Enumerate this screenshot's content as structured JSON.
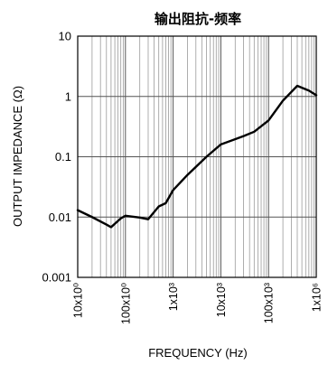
{
  "chart_data": {
    "type": "line",
    "title": "输出阻抗-频率",
    "xlabel": "FREQUENCY (Hz)",
    "ylabel": "OUTPUT IMPEDANCE (Ω)",
    "x_scale": "log",
    "y_scale": "log",
    "xlim": [
      10,
      1000000
    ],
    "ylim": [
      0.001,
      10
    ],
    "grid": true,
    "x_ticks": [
      {
        "value": 10,
        "label": "10x10⁰"
      },
      {
        "value": 100,
        "label": "100x10⁰"
      },
      {
        "value": 1000,
        "label": "1x10³"
      },
      {
        "value": 10000,
        "label": "10x10³"
      },
      {
        "value": 100000,
        "label": "100x10³"
      },
      {
        "value": 1000000,
        "label": "1x10⁶"
      }
    ],
    "y_ticks": [
      {
        "value": 0.001,
        "label": "0.001"
      },
      {
        "value": 0.01,
        "label": "0.01"
      },
      {
        "value": 0.1,
        "label": "0.1"
      },
      {
        "value": 1,
        "label": "1"
      },
      {
        "value": 10,
        "label": "10"
      }
    ],
    "series": [
      {
        "x": [
          10,
          20,
          40,
          50,
          80,
          100,
          200,
          300,
          500,
          700,
          1000,
          2000,
          5000,
          10000,
          30000,
          50000,
          100000,
          200000,
          400000,
          700000,
          1000000
        ],
        "y": [
          0.013,
          0.01,
          0.0075,
          0.0068,
          0.0095,
          0.0105,
          0.0098,
          0.0092,
          0.015,
          0.017,
          0.028,
          0.05,
          0.1,
          0.16,
          0.22,
          0.26,
          0.4,
          0.85,
          1.5,
          1.25,
          1.05
        ]
      }
    ]
  }
}
